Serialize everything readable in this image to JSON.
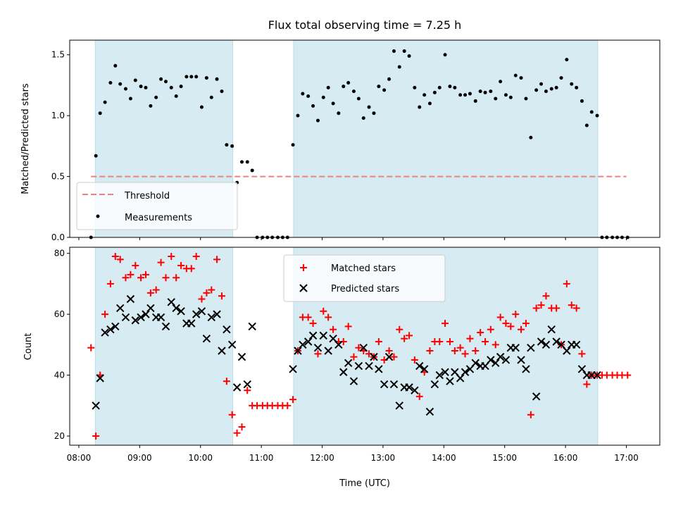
{
  "chart_data": [
    {
      "type": "scatter",
      "title": "Flux total observing time = 7.25 h",
      "xlabel": "",
      "ylabel": "Matched/Predicted stars",
      "ylim": [
        0,
        1.62
      ],
      "yticks": [
        "0.0",
        "0.5",
        "1.0",
        "1.5"
      ],
      "shaded_ranges_hours": [
        [
          8.27,
          10.53
        ],
        [
          11.53,
          16.53
        ]
      ],
      "shade_color": "#add8e6",
      "threshold": {
        "name": "Threshold",
        "value": 0.5,
        "x_range": [
          8.2,
          17.0
        ],
        "color": "#f08080"
      },
      "series": [
        {
          "name": "Measurements",
          "color": "#000000",
          "x": [
            8.2,
            8.28,
            8.35,
            8.43,
            8.52,
            8.6,
            8.68,
            8.77,
            8.85,
            8.93,
            9.02,
            9.1,
            9.18,
            9.27,
            9.35,
            9.43,
            9.52,
            9.6,
            9.68,
            9.77,
            9.85,
            9.93,
            10.02,
            10.1,
            10.18,
            10.27,
            10.35,
            10.43,
            10.52,
            10.6,
            10.68,
            10.77,
            10.85,
            10.93,
            11.02,
            11.1,
            11.18,
            11.27,
            11.35,
            11.43,
            11.52,
            11.6,
            11.68,
            11.77,
            11.85,
            11.93,
            12.02,
            12.1,
            12.18,
            12.27,
            12.35,
            12.43,
            12.52,
            12.6,
            12.68,
            12.77,
            12.85,
            12.93,
            13.02,
            13.1,
            13.18,
            13.27,
            13.35,
            13.43,
            13.52,
            13.6,
            13.68,
            13.77,
            13.85,
            13.93,
            14.02,
            14.1,
            14.18,
            14.27,
            14.35,
            14.43,
            14.52,
            14.6,
            14.68,
            14.77,
            14.85,
            14.93,
            15.02,
            15.1,
            15.18,
            15.27,
            15.35,
            15.43,
            15.52,
            15.6,
            15.68,
            15.77,
            15.85,
            15.93,
            16.02,
            16.1,
            16.18,
            16.27,
            16.35,
            16.43,
            16.52,
            16.6,
            16.68,
            16.77,
            16.85,
            16.93,
            17.02
          ],
          "y": [
            0.0,
            0.67,
            1.02,
            1.11,
            1.27,
            1.41,
            1.26,
            1.22,
            1.14,
            1.29,
            1.24,
            1.23,
            1.08,
            1.15,
            1.3,
            1.28,
            1.23,
            1.16,
            1.24,
            1.32,
            1.32,
            1.32,
            1.07,
            1.31,
            1.15,
            1.3,
            1.2,
            0.76,
            0.75,
            0.45,
            0.62,
            0.62,
            0.55,
            0.0,
            0.0,
            0.0,
            0.0,
            0.0,
            0.0,
            0.0,
            0.76,
            1.0,
            1.18,
            1.16,
            1.08,
            0.96,
            1.15,
            1.23,
            1.1,
            1.02,
            1.24,
            1.27,
            1.2,
            1.14,
            0.98,
            1.07,
            1.02,
            1.24,
            1.21,
            1.3,
            1.53,
            1.4,
            1.53,
            1.49,
            1.23,
            1.07,
            1.17,
            1.1,
            1.19,
            1.23,
            1.5,
            1.24,
            1.23,
            1.17,
            1.17,
            1.18,
            1.12,
            1.2,
            1.19,
            1.2,
            1.14,
            1.28,
            1.17,
            1.15,
            1.33,
            1.31,
            1.14,
            0.82,
            1.21,
            1.26,
            1.2,
            1.22,
            1.23,
            1.31,
            1.46,
            1.26,
            1.23,
            1.12,
            0.92,
            1.03,
            1.0,
            0.0,
            0.0,
            0.0,
            0.0,
            0.0,
            0.0
          ]
        }
      ],
      "legend": {
        "position": "lower-left",
        "entries": [
          "Threshold",
          "Measurements"
        ]
      }
    },
    {
      "type": "scatter",
      "title": "",
      "xlabel": "Time (UTC)",
      "ylabel": "Count",
      "ylim": [
        17,
        82
      ],
      "yticks": [
        "20",
        "40",
        "60",
        "80"
      ],
      "xticks": [
        "08:00",
        "09:00",
        "10:00",
        "11:00",
        "12:00",
        "13:00",
        "14:00",
        "15:00",
        "16:00",
        "17:00"
      ],
      "xlim_hours": [
        7.85,
        17.55
      ],
      "shaded_ranges_hours": [
        [
          8.27,
          10.53
        ],
        [
          11.53,
          16.53
        ]
      ],
      "shade_color": "#add8e6",
      "series": [
        {
          "name": "Matched stars",
          "marker": "plus",
          "color": "#ff0000",
          "x": [
            8.2,
            8.28,
            8.35,
            8.43,
            8.52,
            8.6,
            8.68,
            8.77,
            8.85,
            8.93,
            9.02,
            9.1,
            9.18,
            9.27,
            9.35,
            9.43,
            9.52,
            9.6,
            9.68,
            9.77,
            9.85,
            9.93,
            10.02,
            10.1,
            10.18,
            10.27,
            10.35,
            10.43,
            10.52,
            10.6,
            10.68,
            10.77,
            10.85,
            10.93,
            11.02,
            11.1,
            11.18,
            11.27,
            11.35,
            11.43,
            11.52,
            11.6,
            11.68,
            11.77,
            11.85,
            11.93,
            12.02,
            12.1,
            12.18,
            12.27,
            12.35,
            12.43,
            12.52,
            12.6,
            12.68,
            12.77,
            12.85,
            12.93,
            13.02,
            13.1,
            13.18,
            13.27,
            13.35,
            13.43,
            13.52,
            13.6,
            13.68,
            13.77,
            13.85,
            13.93,
            14.02,
            14.1,
            14.18,
            14.27,
            14.35,
            14.43,
            14.52,
            14.6,
            14.68,
            14.77,
            14.85,
            14.93,
            15.02,
            15.1,
            15.18,
            15.27,
            15.35,
            15.43,
            15.52,
            15.6,
            15.68,
            15.77,
            15.85,
            15.93,
            16.02,
            16.1,
            16.18,
            16.27,
            16.35,
            16.43,
            16.52,
            16.6,
            16.68,
            16.77,
            16.85,
            16.93,
            17.02
          ],
          "y": [
            49,
            20,
            40,
            60,
            70,
            79,
            78,
            72,
            73,
            76,
            72,
            73,
            67,
            68,
            77,
            72,
            79,
            72,
            76,
            75,
            75,
            79,
            65,
            67,
            68,
            78,
            66,
            38,
            27,
            21,
            23,
            35,
            30,
            30,
            30,
            30,
            30,
            30,
            30,
            30,
            32,
            48,
            59,
            59,
            57,
            47,
            61,
            59,
            55,
            51,
            51,
            56,
            46,
            49,
            48,
            47,
            46,
            51,
            45,
            48,
            46,
            55,
            52,
            53,
            45,
            33,
            41,
            48,
            51,
            51,
            57,
            51,
            48,
            49,
            47,
            52,
            48,
            54,
            51,
            55,
            50,
            59,
            57,
            56,
            60,
            55,
            57,
            27,
            62,
            63,
            66,
            62,
            62,
            50,
            70,
            63,
            62,
            47,
            37,
            40,
            40,
            40,
            40,
            40,
            40,
            40,
            40
          ]
        },
        {
          "name": "Predicted stars",
          "marker": "x",
          "color": "#000000",
          "x": [
            8.28,
            8.35,
            8.43,
            8.52,
            8.6,
            8.68,
            8.77,
            8.85,
            8.93,
            9.02,
            9.1,
            9.18,
            9.27,
            9.35,
            9.43,
            9.52,
            9.6,
            9.68,
            9.77,
            9.85,
            9.93,
            10.02,
            10.1,
            10.18,
            10.27,
            10.35,
            10.43,
            10.52,
            10.6,
            10.68,
            10.77,
            10.85,
            11.52,
            11.6,
            11.68,
            11.77,
            11.85,
            11.93,
            12.02,
            12.1,
            12.18,
            12.27,
            12.35,
            12.43,
            12.52,
            12.6,
            12.68,
            12.77,
            12.85,
            12.93,
            13.02,
            13.1,
            13.18,
            13.27,
            13.35,
            13.43,
            13.52,
            13.6,
            13.68,
            13.77,
            13.85,
            13.93,
            14.02,
            14.1,
            14.18,
            14.27,
            14.35,
            14.43,
            14.52,
            14.6,
            14.68,
            14.77,
            14.85,
            14.93,
            15.02,
            15.1,
            15.18,
            15.27,
            15.35,
            15.43,
            15.52,
            15.6,
            15.68,
            15.77,
            15.85,
            15.93,
            16.02,
            16.1,
            16.18,
            16.27,
            16.35,
            16.43,
            16.52
          ],
          "y": [
            30,
            39,
            54,
            55,
            56,
            62,
            59,
            65,
            58,
            59,
            60,
            62,
            59,
            59,
            56,
            64,
            62,
            61,
            57,
            57,
            60,
            61,
            52,
            59,
            60,
            48,
            55,
            50,
            36,
            46,
            37,
            56,
            42,
            48,
            50,
            51,
            53,
            49,
            53,
            48,
            52,
            50,
            41,
            44,
            38,
            43,
            49,
            43,
            46,
            42,
            37,
            46,
            37,
            30,
            36,
            36,
            35,
            43,
            42,
            28,
            37,
            40,
            41,
            38,
            41,
            39,
            41,
            42,
            44,
            43,
            43,
            45,
            44,
            46,
            45,
            49,
            49,
            45,
            42,
            49,
            33,
            51,
            50,
            55,
            51,
            50,
            48,
            50,
            50,
            42,
            40,
            40,
            40
          ]
        }
      ],
      "legend": {
        "position": "top-center",
        "entries": [
          "Matched stars",
          "Predicted stars"
        ]
      }
    }
  ]
}
